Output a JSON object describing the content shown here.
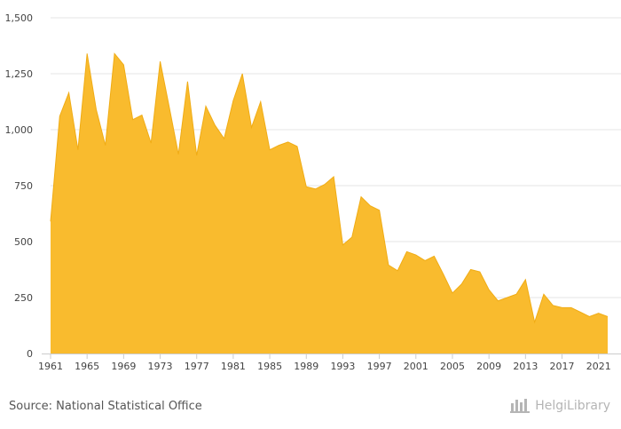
{
  "chart_data": {
    "type": "area",
    "x": [
      1961,
      1962,
      1963,
      1964,
      1965,
      1966,
      1967,
      1968,
      1969,
      1970,
      1971,
      1972,
      1973,
      1974,
      1975,
      1976,
      1977,
      1978,
      1979,
      1980,
      1981,
      1982,
      1983,
      1984,
      1985,
      1986,
      1987,
      1988,
      1989,
      1990,
      1991,
      1992,
      1993,
      1994,
      1995,
      1996,
      1997,
      1998,
      1999,
      2000,
      2001,
      2002,
      2003,
      2004,
      2005,
      2006,
      2007,
      2008,
      2009,
      2010,
      2011,
      2012,
      2013,
      2014,
      2015,
      2016,
      2017,
      2018,
      2019,
      2020,
      2021,
      2022
    ],
    "values": [
      590,
      1060,
      1165,
      910,
      1340,
      1090,
      930,
      1340,
      1290,
      1045,
      1065,
      940,
      1305,
      1100,
      890,
      1215,
      885,
      1105,
      1020,
      960,
      1130,
      1250,
      1010,
      1125,
      910,
      930,
      945,
      925,
      745,
      735,
      755,
      790,
      485,
      520,
      700,
      660,
      640,
      395,
      370,
      455,
      440,
      415,
      435,
      355,
      270,
      310,
      375,
      365,
      285,
      235,
      250,
      265,
      330,
      140,
      265,
      215,
      205,
      205,
      185,
      165,
      180,
      165
    ],
    "x_tick_labels": [
      "1961",
      "1965",
      "1969",
      "1973",
      "1977",
      "1981",
      "1985",
      "1989",
      "1993",
      "1997",
      "2001",
      "2005",
      "2009",
      "2013",
      "2017",
      "2021"
    ],
    "y_tick_labels": [
      "0",
      "250",
      "500",
      "750",
      "1,000",
      "1,250",
      "1,500"
    ],
    "ylim": [
      0,
      1500
    ],
    "title": "",
    "xlabel": "",
    "ylabel": "",
    "grid": true,
    "legend": "none",
    "fill_color": "#F9BB2E",
    "line_color": "#F0AC15",
    "grid_color": "#E6E6E6"
  },
  "footer": {
    "source": "Source: National Statistical Office",
    "brand": "HelgiLibrary",
    "brand_icon": "helgi-logo-icon"
  }
}
